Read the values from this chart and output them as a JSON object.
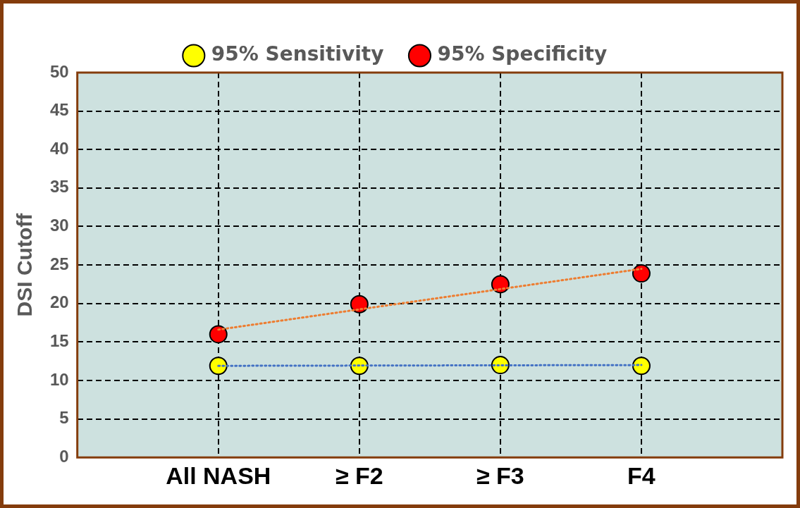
{
  "chart_data": {
    "type": "scatter",
    "ylabel": "DSI Cutoff",
    "categories": [
      "All NASH",
      "≥ F2",
      "≥ F3",
      "F4"
    ],
    "series": [
      {
        "name": "95% Sensitivity",
        "color": "#ffff00",
        "values": [
          11.9,
          11.9,
          12.0,
          11.9
        ]
      },
      {
        "name": "95% Specificity",
        "color": "#ff0000",
        "values": [
          16.0,
          19.9,
          22.5,
          23.9
        ]
      },
      {
        "type": "line",
        "x": [
          "All NASH",
          "F4"
        ],
        "values": [
          11.9,
          12.0
        ],
        "color": "#4472c4",
        "line_style": "dotted",
        "marker": "none"
      },
      {
        "type": "line",
        "x": [
          "All NASH",
          "F4"
        ],
        "values": [
          16.6,
          24.5
        ],
        "color": "#ed7d31",
        "line_style": "dotted",
        "marker": "none"
      }
    ],
    "ylim": [
      0,
      50
    ],
    "yticks": [
      0,
      5,
      10,
      15,
      20,
      25,
      30,
      35,
      40,
      45,
      50
    ],
    "grid": true,
    "legend": "top",
    "marker": "circle"
  }
}
